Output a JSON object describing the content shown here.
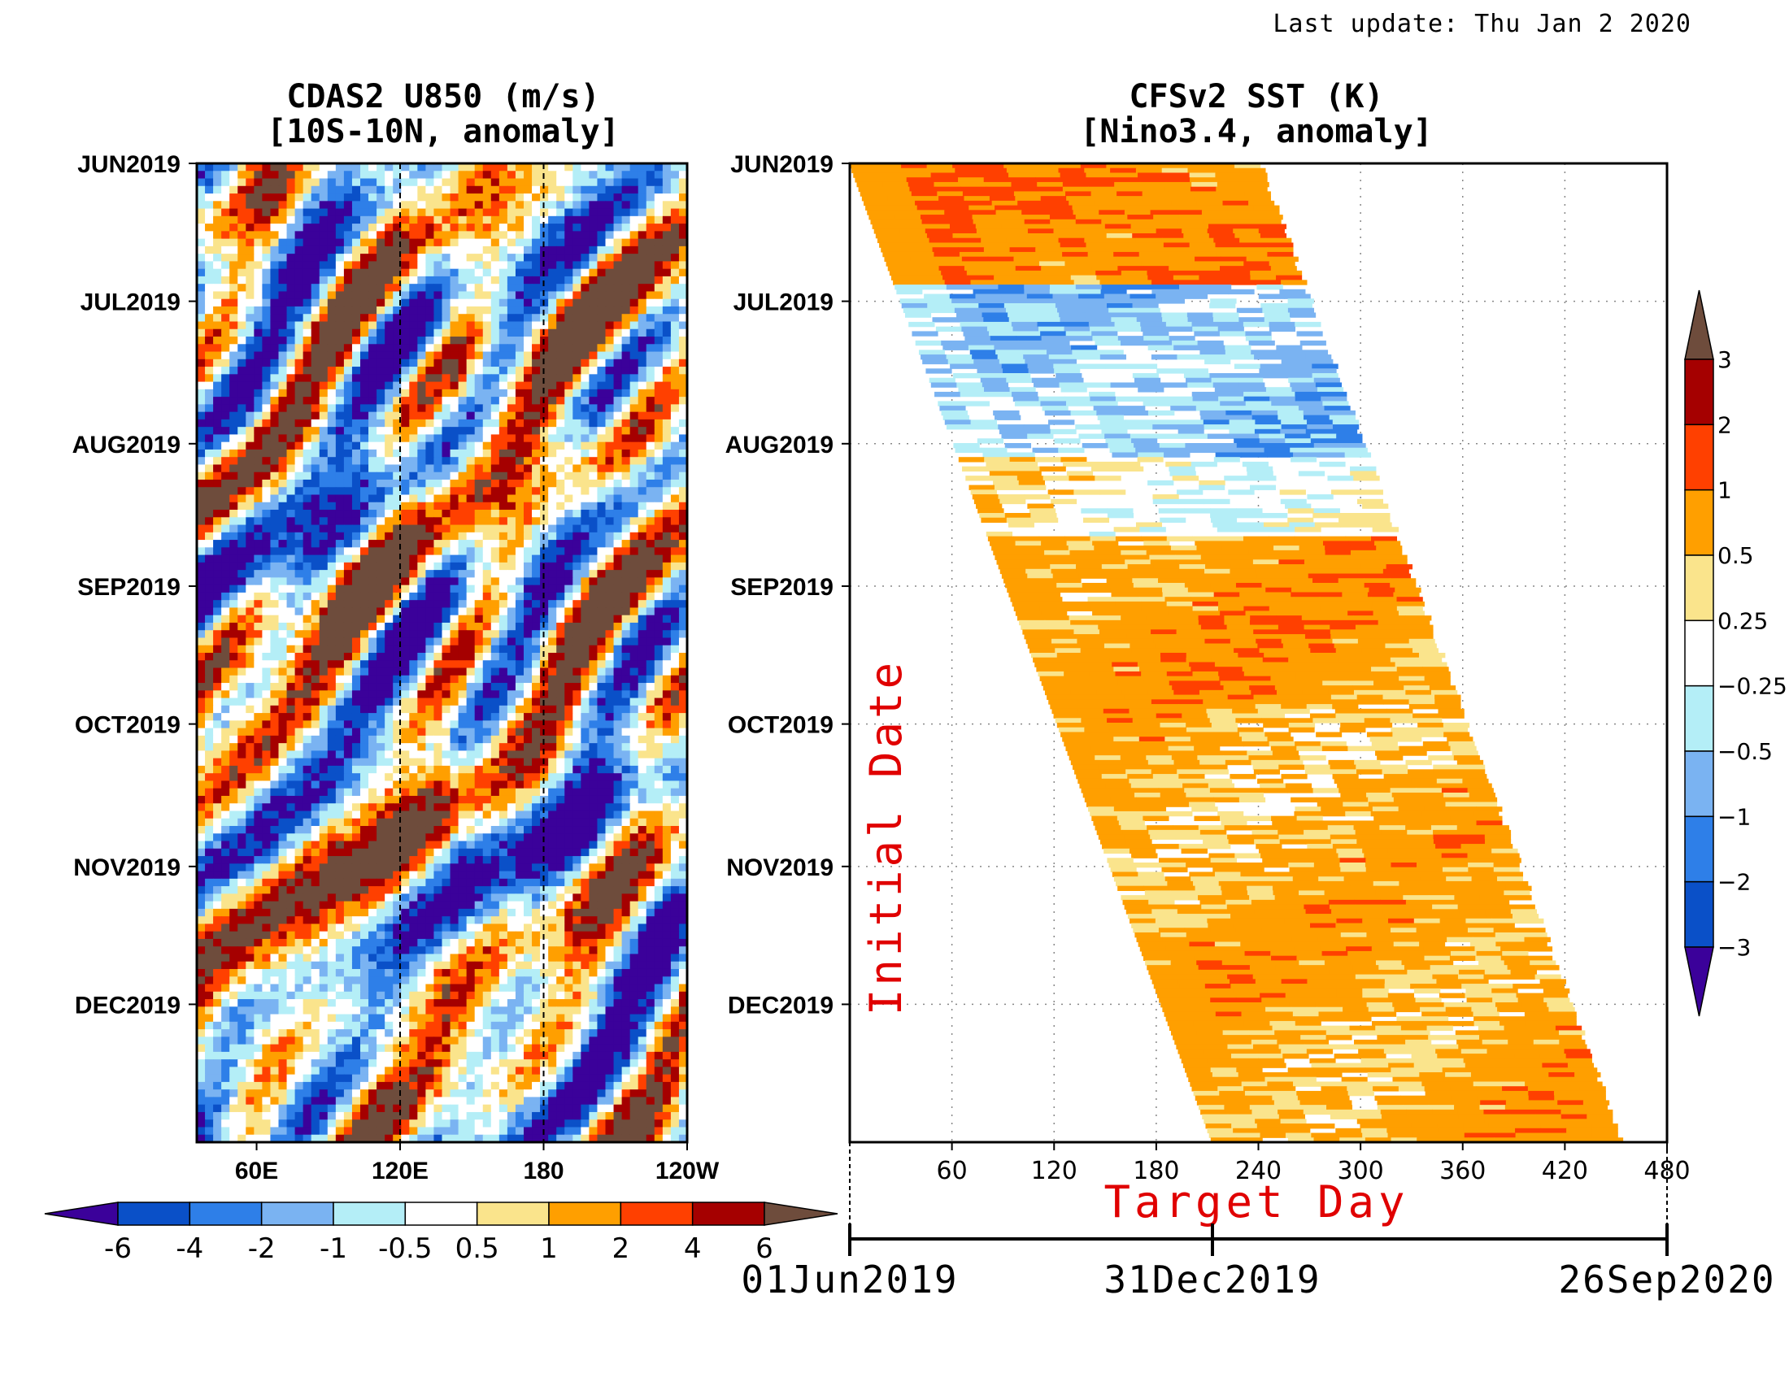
{
  "last_update": "Last update: Thu Jan 2 2020",
  "chart_data": [
    {
      "type": "heatmap",
      "title": "CDAS2 U850 (m/s)",
      "subtitle": "[10S-10N, anomaly]",
      "y_labels": [
        "JUN2019",
        "JUL2019",
        "AUG2019",
        "SEP2019",
        "OCT2019",
        "NOV2019",
        "DEC2019"
      ],
      "x_labels": [
        "60E",
        "120E",
        "180",
        "120W"
      ],
      "x_range": [
        35,
        240
      ],
      "y_range": [
        "2019-06-01",
        "2019-12-31"
      ],
      "reference_lines_x": [
        120,
        180
      ],
      "colorbar": {
        "labels": [
          "-6",
          "-4",
          "-2",
          "-1",
          "-0.5",
          "0.5",
          "1",
          "2",
          "4",
          "6"
        ],
        "colors": [
          "#3b019a",
          "#0a50c8",
          "#2e7fe8",
          "#7ab3f2",
          "#b4eef7",
          "#ffffff",
          "#fae48c",
          "#ff9f00",
          "#ff4000",
          "#a50000",
          "#6e4c3c"
        ]
      }
    },
    {
      "type": "heatmap",
      "title": "CFSv2 SST (K)",
      "subtitle": "[Nino3.4, anomaly]",
      "y_labels": [
        "JUN2019",
        "JUL2019",
        "AUG2019",
        "SEP2019",
        "OCT2019",
        "NOV2019",
        "DEC2019"
      ],
      "x_labels": [
        "60",
        "120",
        "180",
        "240",
        "300",
        "360",
        "420",
        "480"
      ],
      "x_range": [
        0,
        480
      ],
      "y_range": [
        "2019-06-01",
        "2019-12-31"
      ],
      "xlabel": "Target Day",
      "ylabel": "Initial Date",
      "date_axis": [
        "01Jun2019",
        "31Dec2019",
        "26Sep2020"
      ],
      "colorbar": {
        "labels": [
          "3",
          "2",
          "1",
          "0.5",
          "0.25",
          "−0.25",
          "−0.5",
          "−1",
          "−2",
          "−3"
        ],
        "colors": [
          "#6e4c3c",
          "#a50000",
          "#ff4000",
          "#ff9f00",
          "#fae48c",
          "#ffffff",
          "#b4eef7",
          "#7ab3f2",
          "#2e7fe8",
          "#0a50c8",
          "#3b019a"
        ]
      }
    }
  ]
}
